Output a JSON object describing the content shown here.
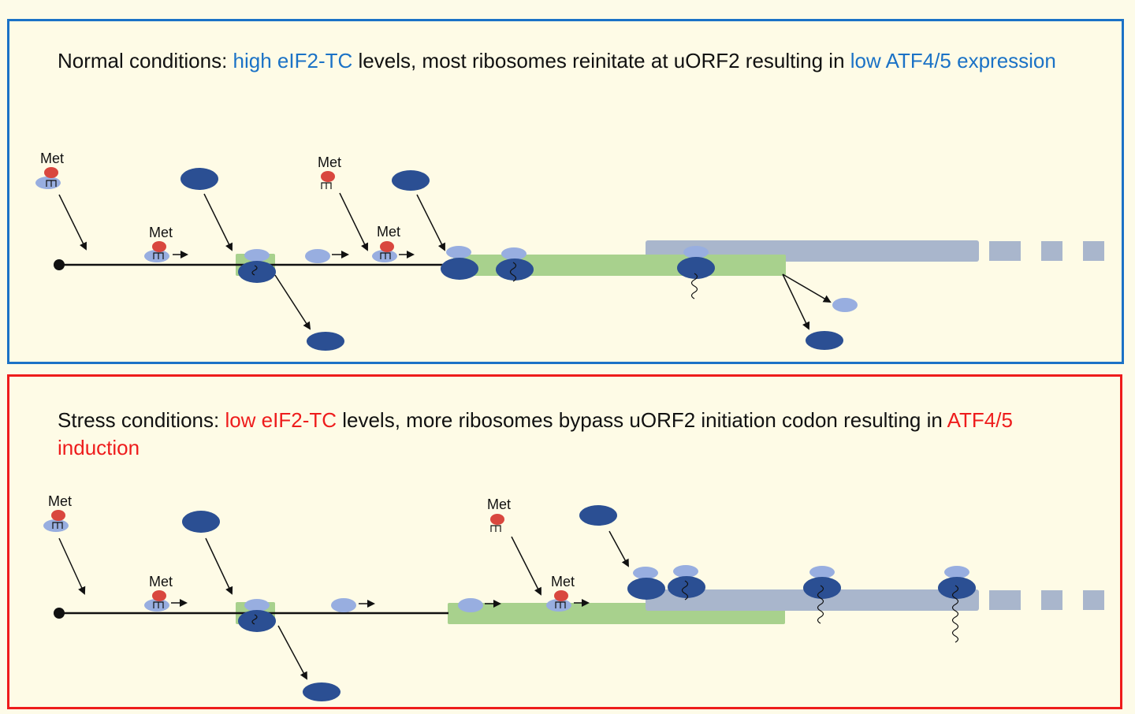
{
  "normal": {
    "caption": {
      "p1": "Normal conditions: ",
      "h1": "high eIF2-TC",
      "p2": " levels, most ribosomes reinitate at uORF2 resulting in ",
      "h2": "low ATF4/5 expression"
    },
    "met_label": "Met"
  },
  "stress": {
    "caption": {
      "p1": "Stress conditions: ",
      "h1": "low eIF2-TC",
      "p2": " levels, more ribosomes bypass uORF2 initiation codon resulting in ",
      "h2": "ATF4/5 induction"
    },
    "met_label": "Met"
  },
  "colors": {
    "normal_border": "#1b72c6",
    "stress_border": "#ee1c1c",
    "large_subunit": "#2b4f93",
    "small_subunit": "#98aee0",
    "met_trna": "#d9473e",
    "uorf": "#a8d18d",
    "atf_orf": "#a9b6cc"
  }
}
